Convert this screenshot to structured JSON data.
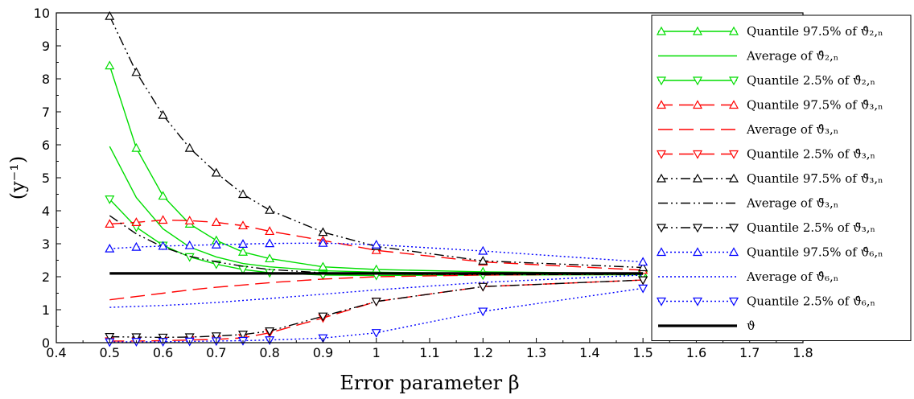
{
  "chart_data": {
    "type": "line",
    "title": "",
    "xlabel": "Error parameter β",
    "ylabel": "(y⁻¹)",
    "xlim": [
      0.4,
      1.8
    ],
    "ylim": [
      0,
      10
    ],
    "xticks": [
      "0.4",
      "0.5",
      "0.6",
      "0.7",
      "0.8",
      "0.9",
      "1",
      "1.1",
      "1.2",
      "1.3",
      "1.4",
      "1.5",
      "1.6",
      "1.7",
      "1.8"
    ],
    "yticks": [
      "0",
      "1",
      "2",
      "3",
      "4",
      "5",
      "6",
      "7",
      "8",
      "9",
      "10"
    ],
    "legend_position": "right",
    "grid": false,
    "series": [
      {
        "name": "Quantile 97.5% of ϑ̂₂,ₙ",
        "color": "#00dd00",
        "dash": "solid",
        "marker": "up",
        "x": [
          0.5,
          0.55,
          0.6,
          0.65,
          0.7,
          0.75,
          0.8,
          0.9,
          1,
          1.2,
          1.5
        ],
        "y": [
          8.4,
          5.9,
          4.45,
          3.6,
          3.1,
          2.75,
          2.55,
          2.3,
          2.22,
          2.15,
          2.1
        ]
      },
      {
        "name": "Average of ϑ̂₂,ₙ",
        "color": "#00dd00",
        "dash": "solid",
        "marker": "none",
        "x": [
          0.5,
          0.55,
          0.6,
          0.65,
          0.7,
          0.75,
          0.8,
          0.9,
          1,
          1.2,
          1.5
        ],
        "y": [
          5.95,
          4.4,
          3.45,
          2.9,
          2.6,
          2.4,
          2.3,
          2.18,
          2.14,
          2.1,
          2.08
        ]
      },
      {
        "name": "Quantile 2.5% of ϑ̂₂,ₙ",
        "color": "#00dd00",
        "dash": "solid",
        "marker": "down",
        "x": [
          0.5,
          0.55,
          0.6,
          0.65,
          0.7,
          0.75,
          0.8,
          0.9,
          1,
          1.2,
          1.5
        ],
        "y": [
          4.35,
          3.5,
          2.95,
          2.6,
          2.38,
          2.22,
          2.12,
          2.05,
          2.04,
          2.05,
          2.06
        ]
      },
      {
        "name": "Quantile 97.5% of ϑ̂₃,ₙ",
        "color": "#ff0000",
        "dash": "longdash",
        "marker": "up",
        "x": [
          0.5,
          0.55,
          0.6,
          0.65,
          0.7,
          0.75,
          0.8,
          0.9,
          1,
          1.2,
          1.5
        ],
        "y": [
          3.6,
          3.65,
          3.72,
          3.7,
          3.65,
          3.55,
          3.38,
          3.1,
          2.8,
          2.45,
          2.2
        ]
      },
      {
        "name": "Average of ϑ̂₃,ₙ",
        "color": "#ff0000",
        "dash": "longdash",
        "marker": "none",
        "x": [
          0.5,
          0.55,
          0.6,
          0.65,
          0.7,
          0.75,
          0.8,
          0.9,
          1,
          1.2,
          1.5
        ],
        "y": [
          1.3,
          1.4,
          1.5,
          1.6,
          1.68,
          1.75,
          1.82,
          1.93,
          2.0,
          2.05,
          2.08
        ]
      },
      {
        "name": "Quantile 2.5% of ϑ̂₃,ₙ",
        "color": "#ff0000",
        "dash": "longdash",
        "marker": "down",
        "x": [
          0.5,
          0.55,
          0.6,
          0.65,
          0.7,
          0.75,
          0.8,
          0.9,
          1,
          1.2,
          1.5
        ],
        "y": [
          0.05,
          0.05,
          0.06,
          0.08,
          0.1,
          0.15,
          0.3,
          0.75,
          1.25,
          1.7,
          1.9
        ]
      },
      {
        "name": "Quantile 97.5% of ϑ̄₃,ₙ",
        "color": "#000000",
        "dash": "dashdot",
        "marker": "up",
        "x": [
          0.5,
          0.55,
          0.6,
          0.65,
          0.7,
          0.75,
          0.8,
          0.9,
          1,
          1.2,
          1.5
        ],
        "y": [
          9.9,
          8.2,
          6.9,
          5.9,
          5.15,
          4.5,
          4.02,
          3.35,
          2.92,
          2.48,
          2.28
        ]
      },
      {
        "name": "Average of ϑ̄₃,ₙ",
        "color": "#000000",
        "dash": "dashdot",
        "marker": "none",
        "x": [
          0.5,
          0.55,
          0.6,
          0.65,
          0.7,
          0.75,
          0.8,
          0.9,
          1,
          1.2,
          1.5
        ],
        "y": [
          3.85,
          3.3,
          2.9,
          2.62,
          2.45,
          2.32,
          2.22,
          2.12,
          2.08,
          2.06,
          2.07
        ]
      },
      {
        "name": "Quantile 2.5% of ϑ̄₃,ₙ",
        "color": "#000000",
        "dash": "dashdot",
        "marker": "down",
        "x": [
          0.5,
          0.55,
          0.6,
          0.65,
          0.7,
          0.75,
          0.8,
          0.9,
          1,
          1.2,
          1.5
        ],
        "y": [
          0.18,
          0.17,
          0.16,
          0.17,
          0.2,
          0.25,
          0.35,
          0.8,
          1.25,
          1.7,
          1.9
        ]
      },
      {
        "name": "Quantile 97.5% of ϑ̂₆,ₙ",
        "color": "#0000ff",
        "dash": "dotted",
        "marker": "up",
        "x": [
          0.5,
          0.55,
          0.6,
          0.65,
          0.7,
          0.75,
          0.8,
          0.9,
          1,
          1.2,
          1.5
        ],
        "y": [
          2.85,
          2.9,
          2.93,
          2.95,
          2.97,
          2.99,
          3.01,
          3.02,
          2.97,
          2.78,
          2.45
        ]
      },
      {
        "name": "Average of ϑ̂₆,ₙ",
        "color": "#0000ff",
        "dash": "dotted",
        "marker": "none",
        "x": [
          0.5,
          0.55,
          0.6,
          0.65,
          0.7,
          0.75,
          0.8,
          0.9,
          1,
          1.2,
          1.5
        ],
        "y": [
          1.07,
          1.1,
          1.13,
          1.17,
          1.22,
          1.28,
          1.34,
          1.47,
          1.6,
          1.83,
          2.05
        ]
      },
      {
        "name": "Quantile 2.5% of ϑ̂₆,ₙ",
        "color": "#0000ff",
        "dash": "dotted",
        "marker": "down",
        "x": [
          0.5,
          0.55,
          0.6,
          0.65,
          0.7,
          0.75,
          0.8,
          0.9,
          1,
          1.2,
          1.5
        ],
        "y": [
          0.02,
          0.03,
          0.03,
          0.04,
          0.05,
          0.06,
          0.08,
          0.14,
          0.3,
          0.95,
          1.65
        ]
      },
      {
        "name": "ϑ",
        "color": "#000000",
        "dash": "thick",
        "marker": "none",
        "x": [
          0.5,
          1.5
        ],
        "y": [
          2.1,
          2.1
        ]
      }
    ]
  }
}
